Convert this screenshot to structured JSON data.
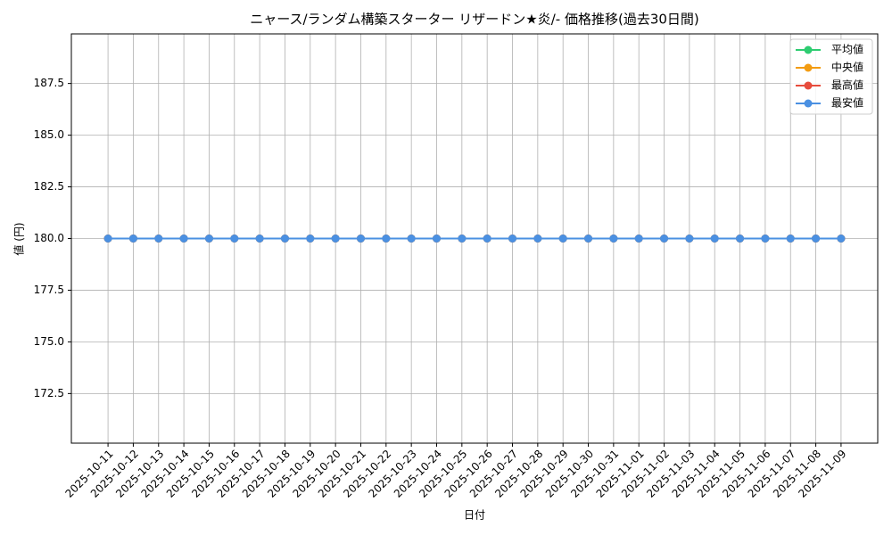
{
  "chart_data": {
    "type": "line",
    "title": "ニャース/ランダム構築スターター リザードン★炎/- 価格推移(過去30日間)",
    "x_label": "日付",
    "y_label": "値 (円)",
    "categories": [
      "2025-10-11",
      "2025-10-12",
      "2025-10-13",
      "2025-10-14",
      "2025-10-15",
      "2025-10-16",
      "2025-10-17",
      "2025-10-18",
      "2025-10-19",
      "2025-10-20",
      "2025-10-21",
      "2025-10-22",
      "2025-10-23",
      "2025-10-24",
      "2025-10-25",
      "2025-10-26",
      "2025-10-27",
      "2025-10-28",
      "2025-10-29",
      "2025-10-30",
      "2025-10-31",
      "2025-11-01",
      "2025-11-02",
      "2025-11-03",
      "2025-11-04",
      "2025-11-05",
      "2025-11-06",
      "2025-11-07",
      "2025-11-08",
      "2025-11-09"
    ],
    "series": [
      {
        "name": "平均値",
        "color": "#2ecc71",
        "values": [
          180,
          180,
          180,
          180,
          180,
          180,
          180,
          180,
          180,
          180,
          180,
          180,
          180,
          180,
          180,
          180,
          180,
          180,
          180,
          180,
          180,
          180,
          180,
          180,
          180,
          180,
          180,
          180,
          180,
          180
        ]
      },
      {
        "name": "中央値",
        "color": "#f39c12",
        "values": [
          180,
          180,
          180,
          180,
          180,
          180,
          180,
          180,
          180,
          180,
          180,
          180,
          180,
          180,
          180,
          180,
          180,
          180,
          180,
          180,
          180,
          180,
          180,
          180,
          180,
          180,
          180,
          180,
          180,
          180
        ]
      },
      {
        "name": "最高値",
        "color": "#e74c3c",
        "values": [
          180,
          180,
          180,
          180,
          180,
          180,
          180,
          180,
          180,
          180,
          180,
          180,
          180,
          180,
          180,
          180,
          180,
          180,
          180,
          180,
          180,
          180,
          180,
          180,
          180,
          180,
          180,
          180,
          180,
          180
        ]
      },
      {
        "name": "最安値",
        "color": "#4a90e2",
        "values": [
          180,
          180,
          180,
          180,
          180,
          180,
          180,
          180,
          180,
          180,
          180,
          180,
          180,
          180,
          180,
          180,
          180,
          180,
          180,
          180,
          180,
          180,
          180,
          180,
          180,
          180,
          180,
          180,
          180,
          180
        ]
      }
    ],
    "ylim": [
      170.1,
      189.9
    ],
    "yticks": [
      172.5,
      {
        "value": 175,
        "label": "175.0"
      },
      177.5,
      {
        "value": 180,
        "label": "180.0"
      },
      182.5,
      {
        "value": 185,
        "label": "185.0"
      },
      187.5
    ],
    "grid": true,
    "legend": "upper right"
  }
}
